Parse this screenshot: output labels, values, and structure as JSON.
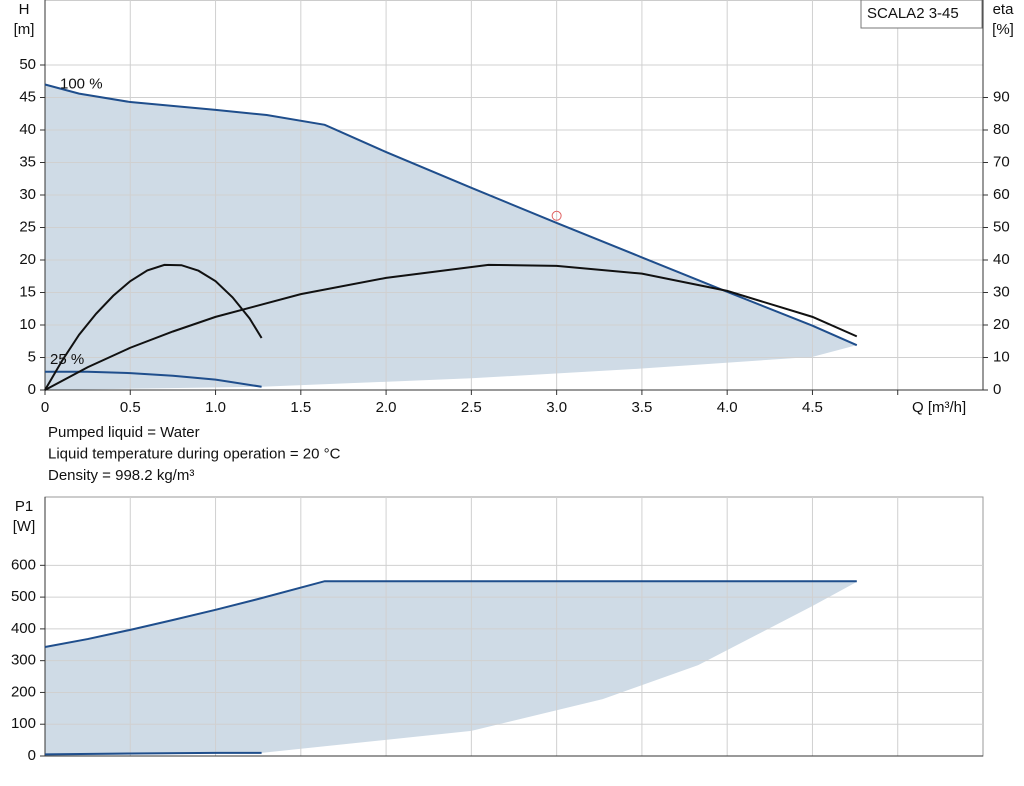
{
  "chart_data": [
    {
      "type": "line",
      "title": "SCALA2 3-45",
      "ylabel": "H",
      "yunit": "[m]",
      "y2label": "eta",
      "y2unit": "[%]",
      "xlabel": "Q [m³/h]",
      "xlim": [
        0,
        5.5
      ],
      "ylim": [
        0,
        60
      ],
      "y2lim": [
        0,
        120
      ],
      "grid": true,
      "xticks": [
        0,
        0.5,
        {
          "value": 1,
          "label": "1.0"
        },
        1.5,
        {
          "value": 2,
          "label": "2.0"
        },
        2.5,
        {
          "value": 3,
          "label": "3.0"
        },
        3.5,
        {
          "value": 4,
          "label": "4.0"
        },
        4.5,
        {
          "value": 5,
          "label": null
        }
      ],
      "yticks": [
        0,
        5,
        10,
        15,
        20,
        25,
        30,
        35,
        40,
        45,
        50
      ],
      "y2ticks": [
        0,
        10,
        20,
        30,
        40,
        50,
        60,
        70,
        80,
        90
      ],
      "area": {
        "color": "#cfdbe6",
        "x": [
          0,
          1.27,
          2.5,
          3.5,
          4.5,
          4.76
        ],
        "values": [
          0,
          0.5,
          1.8,
          3.3,
          5.1,
          6.9
        ]
      },
      "series": [
        {
          "name": "100 %",
          "color": "#1f4e8c",
          "x": [
            0,
            0.2,
            0.5,
            1.0,
            1.3,
            1.64,
            2.0,
            2.5,
            3.0,
            3.5,
            4.0,
            4.5,
            4.76
          ],
          "values": [
            47,
            45.6,
            44.3,
            43.1,
            42.3,
            40.8,
            36.6,
            31.1,
            25.7,
            20.4,
            15.1,
            9.9,
            6.9
          ]
        },
        {
          "name": "25 %",
          "color": "#1f4e8c",
          "x": [
            0,
            0.25,
            0.5,
            0.75,
            1.0,
            1.27
          ],
          "values": [
            2.8,
            2.8,
            2.6,
            2.2,
            1.6,
            0.5
          ]
        },
        {
          "color": "#111111",
          "axis": "y2",
          "x": [
            0,
            0.1,
            0.2,
            0.3,
            0.4,
            0.5,
            0.6,
            0.7,
            0.8,
            0.9,
            1.0,
            1.1,
            1.2,
            1.27
          ],
          "values": [
            0,
            9,
            17,
            23.5,
            29,
            33.5,
            36.8,
            38.5,
            38.4,
            36.7,
            33.5,
            28.5,
            22,
            16
          ]
        },
        {
          "color": "#111111",
          "axis": "y2",
          "x": [
            0,
            0.25,
            0.5,
            0.75,
            1.0,
            1.5,
            2.0,
            2.6,
            3.0,
            3.5,
            4.0,
            4.5,
            4.76
          ],
          "values": [
            0,
            7,
            13,
            18,
            22.5,
            29.5,
            34.5,
            38.5,
            38.2,
            35.8,
            30.5,
            22.5,
            16.5
          ]
        }
      ],
      "duty_point": {
        "x": 3,
        "value": 26.8,
        "color": "#e06060"
      }
    },
    {
      "type": "line",
      "ylabel": "P1",
      "yunit": "[W]",
      "xlim": [
        0,
        5.5
      ],
      "ylim": [
        0,
        815
      ],
      "grid": true,
      "yticks": [
        0,
        100,
        200,
        300,
        400,
        500,
        600
      ],
      "area": {
        "color": "#cfdbe6",
        "x": [
          0,
          1.27,
          2.5,
          3.27,
          3.83,
          4.5,
          4.76
        ],
        "values": [
          0,
          10,
          79,
          179,
          286,
          472,
          548
        ]
      },
      "series": [
        {
          "color": "#1f4e8c",
          "x": [
            0,
            0.25,
            0.5,
            0.75,
            1.0,
            1.25,
            1.64,
            4.76
          ],
          "values": [
            343,
            368,
            397,
            428,
            460,
            494,
            550,
            550
          ]
        },
        {
          "color": "#1f4e8c",
          "x": [
            0,
            0.5,
            1.0,
            1.27
          ],
          "values": [
            5,
            8,
            10,
            10
          ]
        }
      ]
    }
  ],
  "notes": [
    "Pumped liquid = Water",
    "Liquid temperature during operation = 20 °C",
    "Density = 998.2 kg/m³"
  ]
}
